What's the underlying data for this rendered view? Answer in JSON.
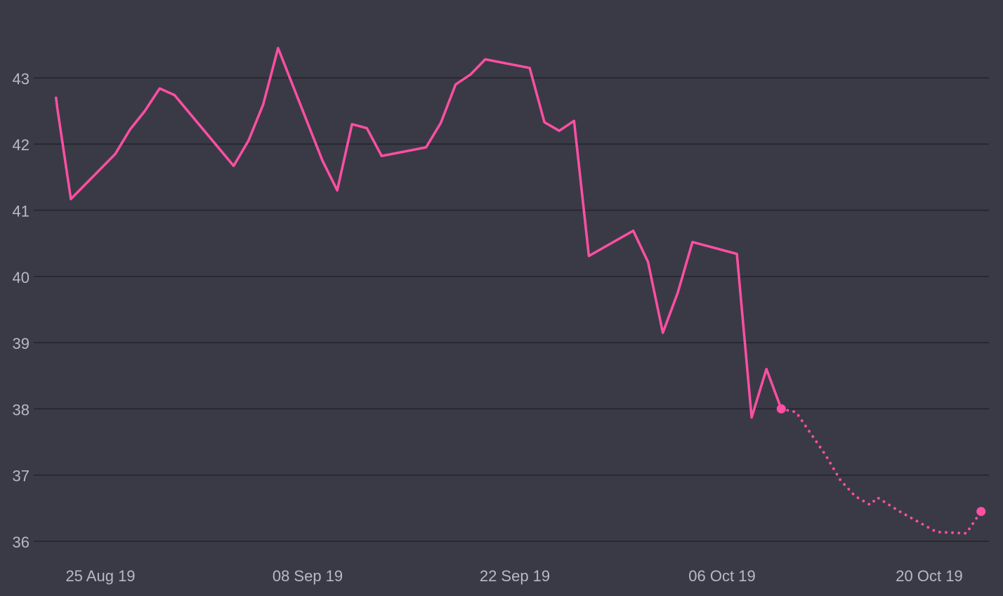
{
  "colors": {
    "background": "#3a3a46",
    "grid": "#23232c",
    "tick_text": "#b9b9c6",
    "series": "#ff4fa3"
  },
  "chart_data": {
    "type": "line",
    "title": "",
    "xlabel": "",
    "ylabel": "",
    "grid": "horizontal",
    "legend": "none",
    "ylim": [
      35.6,
      44.0
    ],
    "xlim": [
      "2019-08-22",
      "2019-10-24"
    ],
    "yticks": [
      36,
      37,
      38,
      39,
      40,
      41,
      42,
      43
    ],
    "xticks": [
      {
        "date": "2019-08-25",
        "label": "25 Aug 19"
      },
      {
        "date": "2019-09-08",
        "label": "08 Sep 19"
      },
      {
        "date": "2019-09-22",
        "label": "22 Sep 19"
      },
      {
        "date": "2019-10-06",
        "label": "06 Oct 19"
      },
      {
        "date": "2019-10-20",
        "label": "20 Oct 19"
      }
    ],
    "series": [
      {
        "style": "solid",
        "points": [
          {
            "x": "2019-08-22T00:00",
            "y": 42.7
          },
          {
            "x": "2019-08-22T02:00",
            "y": 42.55
          },
          {
            "x": "2019-08-23",
            "y": 41.17
          },
          {
            "x": "2019-08-26",
            "y": 41.85
          },
          {
            "x": "2019-08-27",
            "y": 42.22
          },
          {
            "x": "2019-08-28",
            "y": 42.5
          },
          {
            "x": "2019-08-29",
            "y": 42.84
          },
          {
            "x": "2019-08-30",
            "y": 42.74
          },
          {
            "x": "2019-09-03",
            "y": 41.67
          },
          {
            "x": "2019-09-04",
            "y": 42.05
          },
          {
            "x": "2019-09-05",
            "y": 42.6
          },
          {
            "x": "2019-09-06",
            "y": 43.45
          },
          {
            "x": "2019-09-09",
            "y": 41.75
          },
          {
            "x": "2019-09-10",
            "y": 41.3
          },
          {
            "x": "2019-09-11",
            "y": 42.3
          },
          {
            "x": "2019-09-12",
            "y": 42.24
          },
          {
            "x": "2019-09-13",
            "y": 41.82
          },
          {
            "x": "2019-09-16",
            "y": 41.95
          },
          {
            "x": "2019-09-17",
            "y": 42.32
          },
          {
            "x": "2019-09-18",
            "y": 42.9
          },
          {
            "x": "2019-09-19",
            "y": 43.05
          },
          {
            "x": "2019-09-20",
            "y": 43.28
          },
          {
            "x": "2019-09-23",
            "y": 43.15
          },
          {
            "x": "2019-09-24",
            "y": 42.33
          },
          {
            "x": "2019-09-25",
            "y": 42.2
          },
          {
            "x": "2019-09-26",
            "y": 42.35
          },
          {
            "x": "2019-09-27",
            "y": 40.31
          },
          {
            "x": "2019-09-30",
            "y": 40.69
          },
          {
            "x": "2019-10-01",
            "y": 40.22
          },
          {
            "x": "2019-10-02",
            "y": 39.15
          },
          {
            "x": "2019-10-03",
            "y": 39.75
          },
          {
            "x": "2019-10-04",
            "y": 40.52
          },
          {
            "x": "2019-10-07",
            "y": 40.34
          },
          {
            "x": "2019-10-08",
            "y": 37.87
          },
          {
            "x": "2019-10-09",
            "y": 38.6
          },
          {
            "x": "2019-10-10",
            "y": 38.0
          }
        ]
      },
      {
        "style": "dotted",
        "points": [
          {
            "x": "2019-10-10",
            "y": 38.0
          },
          {
            "x": "2019-10-11",
            "y": 37.95
          },
          {
            "x": "2019-10-13",
            "y": 37.3
          },
          {
            "x": "2019-10-14",
            "y": 36.92
          },
          {
            "x": "2019-10-15",
            "y": 36.68
          },
          {
            "x": "2019-10-16",
            "y": 36.55
          },
          {
            "x": "2019-10-16T12:00",
            "y": 36.66
          },
          {
            "x": "2019-10-18",
            "y": 36.45
          },
          {
            "x": "2019-10-20",
            "y": 36.2
          },
          {
            "x": "2019-10-20T12:00",
            "y": 36.14
          },
          {
            "x": "2019-10-22T12:00",
            "y": 36.12
          },
          {
            "x": "2019-10-23T12:00",
            "y": 36.45
          }
        ]
      }
    ],
    "markers": [
      {
        "x": "2019-10-10",
        "y": 38.0
      },
      {
        "x": "2019-10-23T12:00",
        "y": 36.45
      }
    ]
  }
}
